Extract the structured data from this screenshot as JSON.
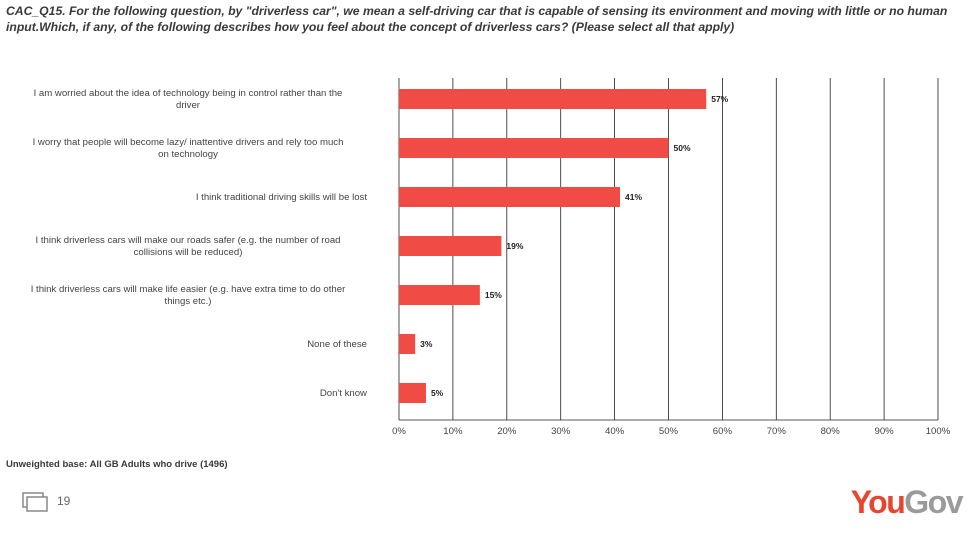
{
  "header": {
    "title": "CAC_Q15. For the following question, by \"driverless car\", we mean a self-driving car that is capable of sensing its environment and moving with little or no human input.Which, if any, of the following describes how you feel about the concept of driverless cars? (Please select all that apply)"
  },
  "chart_data": {
    "type": "bar",
    "orientation": "horizontal",
    "categories": [
      [
        "I am worried about the idea of technology being in control rather than the",
        "driver"
      ],
      [
        "I worry that people will become lazy/ inattentive drivers and rely too much",
        "on technology"
      ],
      [
        "I think traditional driving skills will be lost"
      ],
      [
        "I think driverless cars will make our roads safer (e.g. the number of road",
        "collisions will be reduced)"
      ],
      [
        "I think driverless cars will make life easier (e.g. have extra time to do other",
        "things etc.)"
      ],
      [
        "None of these"
      ],
      [
        "Don't know"
      ]
    ],
    "values": [
      57,
      50,
      41,
      19,
      15,
      3,
      5
    ],
    "value_labels": [
      "57%",
      "50%",
      "41%",
      "19%",
      "15%",
      "3%",
      "5%"
    ],
    "xlim": [
      0,
      100
    ],
    "xticks": [
      0,
      10,
      20,
      30,
      40,
      50,
      60,
      70,
      80,
      90,
      100
    ],
    "xtick_labels": [
      "0%",
      "10%",
      "20%",
      "30%",
      "40%",
      "50%",
      "60%",
      "70%",
      "80%",
      "90%",
      "100%"
    ],
    "grid": true,
    "bar_color": "#f04b45",
    "grid_color": "#222222"
  },
  "footer": {
    "base_note": "Unweighted base: All GB Adults who drive (1496)",
    "page_number": "19",
    "logo_you": "You",
    "logo_gov": "Gov"
  }
}
